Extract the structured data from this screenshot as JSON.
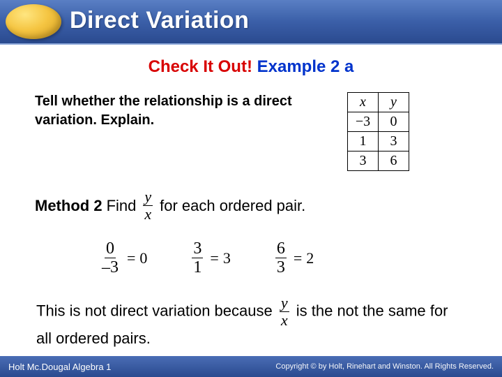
{
  "header": {
    "title": "Direct Variation",
    "title_color": "#ffffff",
    "bg_gradient": [
      "#5a7fc4",
      "#2a4a8f"
    ],
    "oval_gradient": [
      "#ffe680",
      "#d19a1a"
    ]
  },
  "check": {
    "red_text": "Check It Out!",
    "blue_text": "Example 2 a",
    "red_color": "#d80000",
    "blue_color": "#0033cc",
    "fontsize": 24
  },
  "prompt": "Tell whether the relationship is a direct variation. Explain.",
  "table": {
    "headers": [
      "x",
      "y"
    ],
    "rows": [
      [
        "−3",
        "0"
      ],
      [
        "1",
        "3"
      ],
      [
        "3",
        "6"
      ]
    ],
    "border_color": "#000000",
    "cell_bg": "#ffffff"
  },
  "method": {
    "label": "Method 2",
    "verb": "Find",
    "frac_num": "y",
    "frac_den": "x",
    "tail": "for each ordered pair."
  },
  "ratios": [
    {
      "num": "0",
      "den": "–3",
      "result": "0"
    },
    {
      "num": "3",
      "den": "1",
      "result": "3"
    },
    {
      "num": "6",
      "den": "3",
      "result": "2"
    }
  ],
  "conclusion": {
    "before": "This is not direct variation because",
    "frac_num": "y",
    "frac_den": "x",
    "after": "is the not the same for all ordered pairs."
  },
  "footer": {
    "left": "Holt Mc.Dougal Algebra 1",
    "right": "Copyright © by Holt, Rinehart and Winston. All Rights Reserved.",
    "bg_gradient": [
      "#4a6db5",
      "#2a4a8f"
    ]
  },
  "eq_symbol": "="
}
